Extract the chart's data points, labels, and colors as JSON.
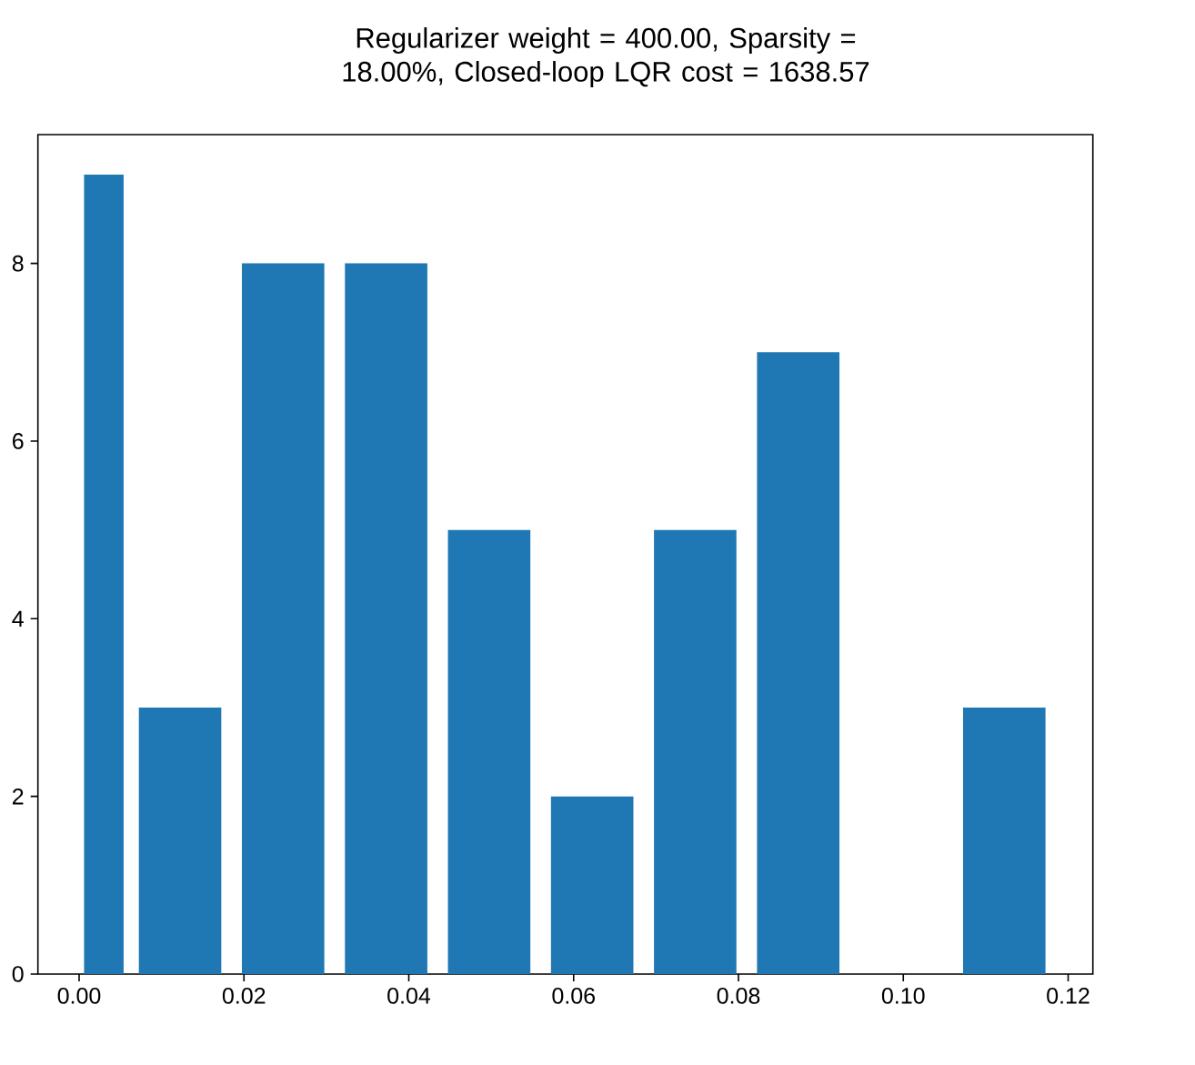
{
  "chart_data": {
    "type": "histogram",
    "title": "Regularizer weight = 400.00, Sparsity = 18.00%, Closed-loop LQR cost = 1638.57",
    "bins": [
      0,
      0.006,
      0.0185,
      0.031,
      0.0435,
      0.056,
      0.0685,
      0.081,
      0.0935,
      0.106,
      0.1185
    ],
    "values": [
      9,
      3,
      8,
      8,
      5,
      2,
      5,
      7,
      0,
      3
    ],
    "color": "#1f77b4",
    "xlim": [
      -0.005,
      0.123
    ],
    "ylim": [
      0,
      9.45
    ],
    "xticks": [
      {
        "value": 0,
        "label": "0.00"
      },
      {
        "value": 0.02,
        "label": "0.02"
      },
      {
        "value": 0.04,
        "label": "0.04"
      },
      {
        "value": 0.06,
        "label": "0.06"
      },
      {
        "value": 0.08,
        "label": "0.08"
      },
      {
        "value": 0.1,
        "label": "0.10"
      },
      {
        "value": 0.12,
        "label": "0.12"
      }
    ],
    "yticks": [
      0,
      2,
      4,
      6,
      8
    ],
    "grid": false
  }
}
